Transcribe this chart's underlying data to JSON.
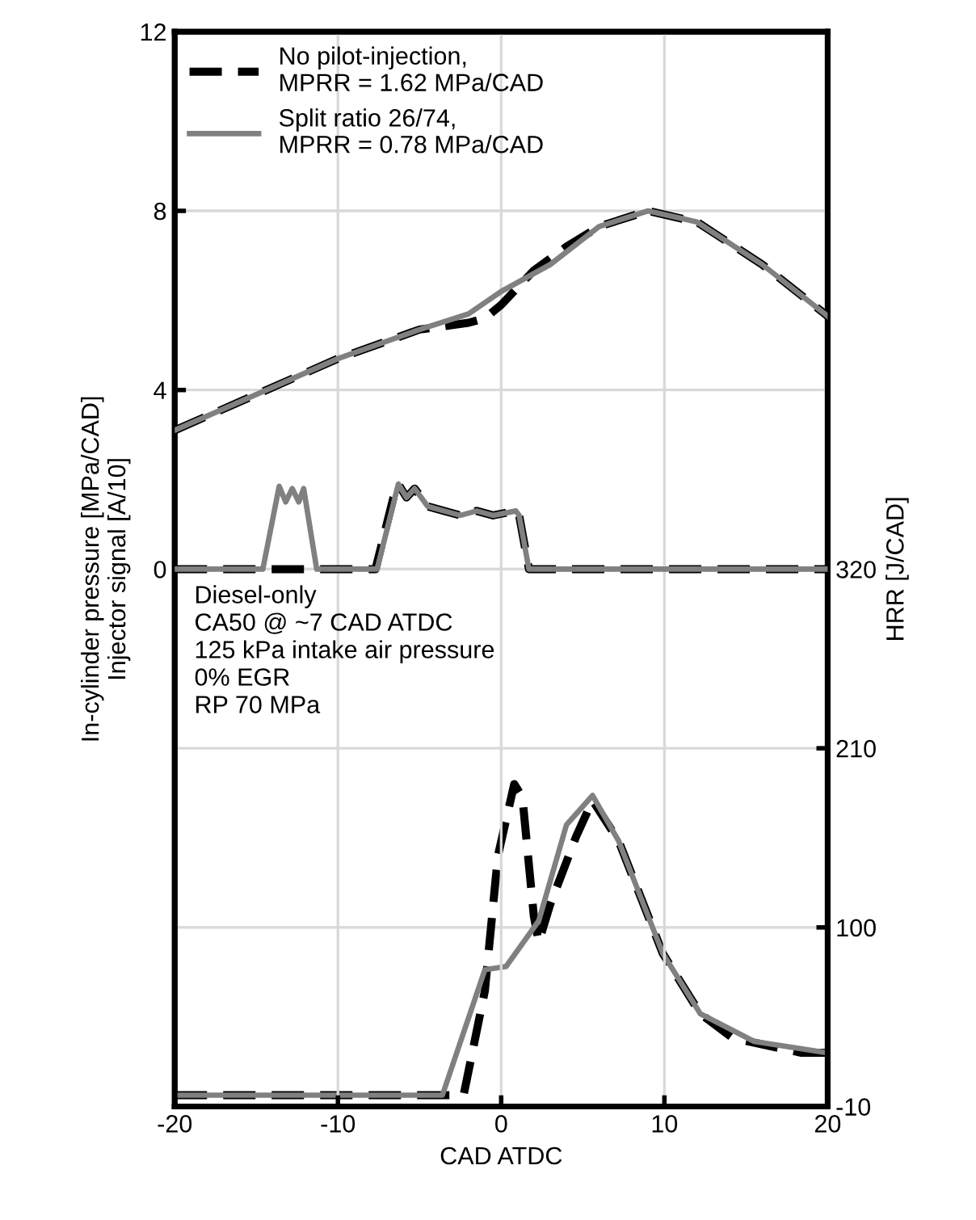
{
  "chart_data": {
    "type": "line",
    "xlabel": "CAD ATDC",
    "ylabel": "In-cylinder pressure [MPa/CAD]\nInjector signal [A/10]",
    "y2label": "HRR [J/CAD]",
    "xlim": [
      -20,
      20
    ],
    "xticks": [
      -20,
      -10,
      0,
      10,
      20
    ],
    "ylim": [
      -12,
      12
    ],
    "yticks": [
      0,
      4,
      8,
      12
    ],
    "y2lim": [
      -10,
      650
    ],
    "y2ticks": [
      -10,
      100,
      210,
      320
    ],
    "grid": true,
    "legend": "top left",
    "marker": "none",
    "annotations": [
      "Diesel-only\nCA50 @ ~7 CAD ATDC\n125 kPa intake air pressure\n0% EGR\nRP 70 MPa"
    ],
    "series": [
      {
        "name": "No pilot-injection,\nMPRR = 1.62 MPa/CAD",
        "color": "#000000",
        "line_style": "dashed",
        "x": [
          -20,
          -10,
          -5,
          -2,
          -1,
          0,
          2,
          4,
          6,
          9,
          12,
          16,
          20
        ],
        "values": [
          3.1,
          4.7,
          5.35,
          5.5,
          5.6,
          5.9,
          6.67,
          7.2,
          7.65,
          8.0,
          7.75,
          6.8,
          5.65
        ]
      },
      {
        "name": "Split ratio 26/74,\nMPRR = 0.78 MPa/CAD",
        "color": "#808080",
        "line_style": "solid",
        "x": [
          -20,
          -10,
          -5,
          -2,
          0,
          3,
          6,
          9,
          12,
          16,
          20
        ],
        "values": [
          3.1,
          4.7,
          5.35,
          5.7,
          6.2,
          6.8,
          7.65,
          8.0,
          7.75,
          6.8,
          5.65
        ]
      },
      {
        "color": "#000000",
        "line_style": "dashed",
        "x": [
          -20,
          -7.7,
          -6.6,
          -6.3,
          -5.8,
          -5.3,
          -4.5,
          -3.5,
          -2.5,
          -1.5,
          -0.5,
          0.9,
          1.1,
          1.7,
          20
        ],
        "values": [
          0,
          0,
          1.6,
          1.9,
          1.6,
          1.8,
          1.4,
          1.3,
          1.2,
          1.3,
          1.2,
          1.3,
          1.2,
          0,
          0
        ]
      },
      {
        "color": "#808080",
        "line_style": "solid",
        "x": [
          -20,
          -14.6,
          -13.6,
          -13.2,
          -12.8,
          -12.4,
          -12.1,
          -11.3,
          -7.6,
          -6.3,
          -5.8,
          -5.3,
          -4.5,
          -3.5,
          -2.5,
          -1.5,
          -0.5,
          0.9,
          1.1,
          1.7,
          20
        ],
        "values": [
          0,
          0,
          1.85,
          1.5,
          1.8,
          1.5,
          1.8,
          0,
          0,
          1.9,
          1.6,
          1.8,
          1.4,
          1.3,
          1.2,
          1.3,
          1.2,
          1.3,
          1.2,
          0,
          0
        ]
      },
      {
        "color": "#000000",
        "line_style": "dashed",
        "axis": "y2",
        "x": [
          -20,
          -2.3,
          -1.0,
          -0.2,
          0.8,
          1.3,
          2.0,
          2.3,
          3.0,
          4.6,
          5.6,
          7.2,
          9.9,
          12.2,
          14.2,
          18.4,
          20
        ],
        "values": [
          -3,
          -3,
          61,
          144,
          188,
          180,
          107,
          91,
          114,
          156,
          178,
          153,
          84,
          47,
          32,
          23,
          23
        ]
      },
      {
        "color": "#808080",
        "line_style": "solid",
        "axis": "y2",
        "x": [
          -20,
          -3.6,
          -1.0,
          0.3,
          2.3,
          4.0,
          5.6,
          7.2,
          9.9,
          12.2,
          15.5,
          20
        ],
        "values": [
          -3,
          -3,
          74,
          76,
          104,
          163,
          181,
          153,
          84,
          47,
          30,
          23
        ]
      }
    ]
  }
}
